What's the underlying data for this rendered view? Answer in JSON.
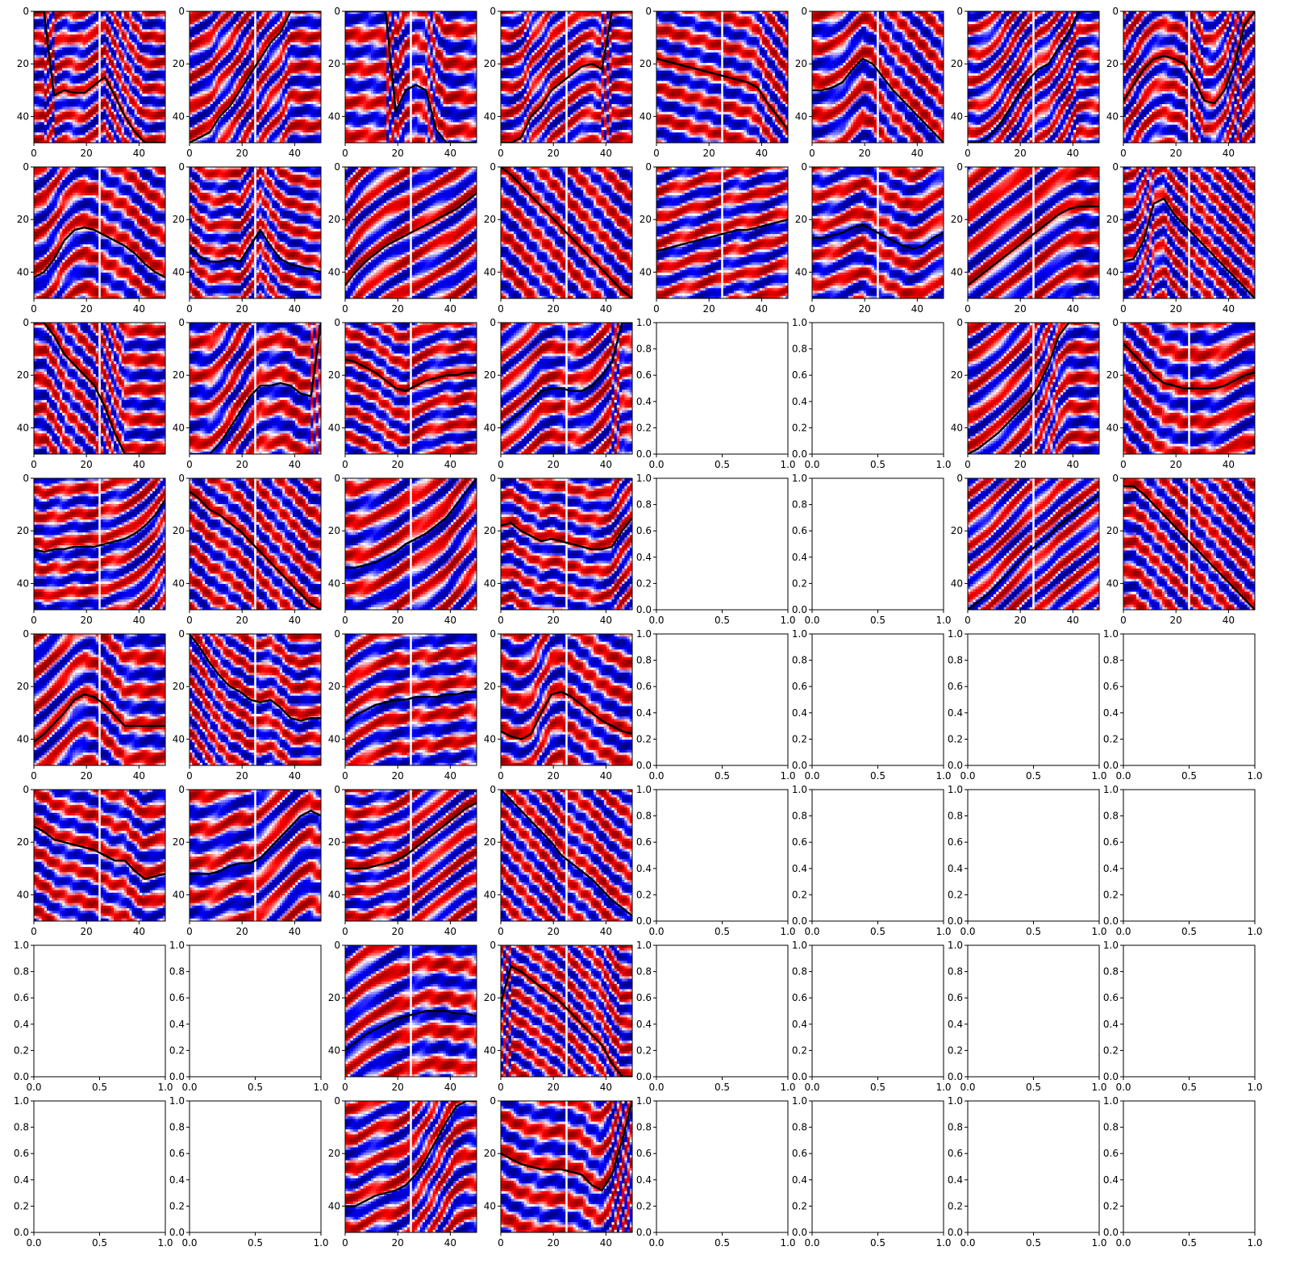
{
  "figure": {
    "rows": 8,
    "cols": 8,
    "colormap": "seismic",
    "colors": {
      "red": "#d40000",
      "white": "#ffffff",
      "blue": "#0000b0",
      "trace": "#000000",
      "center_line": "#ffffff"
    }
  },
  "chart_data": {
    "type": "heatmap",
    "description_free": true,
    "data_axis": {
      "xlim": [
        0,
        50
      ],
      "ylim": [
        50,
        0
      ],
      "xticks": [
        0,
        20,
        40
      ],
      "yticks": [
        0,
        20,
        40
      ],
      "xtick_labels": [
        "0",
        "20",
        "40"
      ],
      "ytick_labels": [
        "0",
        "20",
        "40"
      ],
      "center_x": 25
    },
    "empty_axis": {
      "xlim": [
        0,
        1
      ],
      "ylim": [
        0,
        1
      ],
      "xticks": [
        0,
        0.5,
        1
      ],
      "yticks": [
        0,
        0.2,
        0.4,
        0.6,
        0.8,
        1
      ],
      "xtick_labels": [
        "0.0",
        "0.5",
        "1.0"
      ],
      "ytick_labels": [
        "0.0",
        "0.2",
        "0.4",
        "0.6",
        "0.8",
        "1.0"
      ]
    },
    "panels": [
      {
        "row": 0,
        "col": 0,
        "kind": "data",
        "trace_y": [
          0,
          0,
          32,
          30,
          31,
          31,
          28,
          25,
          32,
          40,
          46,
          50,
          50,
          50
        ],
        "dip": -0.9,
        "phase": 0.3
      },
      {
        "row": 0,
        "col": 1,
        "kind": "data",
        "trace_y": [
          50,
          48,
          46,
          40,
          36,
          30,
          24,
          18,
          12,
          8,
          0,
          0,
          0,
          0
        ],
        "dip": -0.7,
        "phase": 1.1
      },
      {
        "row": 0,
        "col": 2,
        "kind": "data",
        "trace_y": [
          0,
          0,
          0,
          0,
          0,
          38,
          30,
          28,
          30,
          45,
          50,
          50,
          50,
          50
        ],
        "dip": 0.5,
        "phase": 2.0
      },
      {
        "row": 0,
        "col": 3,
        "kind": "data",
        "trace_y": [
          50,
          50,
          48,
          40,
          36,
          30,
          27,
          24,
          21,
          20,
          22,
          0,
          0,
          0
        ],
        "dip": -0.2,
        "phase": 0.7
      },
      {
        "row": 0,
        "col": 4,
        "kind": "data",
        "trace_y": [
          18,
          19,
          20,
          21,
          22,
          23,
          24,
          25,
          26,
          27,
          29,
          35,
          40,
          45
        ],
        "dip": 0.15,
        "phase": 0.0
      },
      {
        "row": 0,
        "col": 5,
        "kind": "data",
        "trace_y": [
          30,
          30,
          29,
          27,
          22,
          18,
          20,
          25,
          30,
          34,
          38,
          42,
          46,
          50
        ],
        "dip": 0.9,
        "phase": 1.6
      },
      {
        "row": 0,
        "col": 6,
        "kind": "data",
        "trace_y": [
          50,
          50,
          48,
          44,
          38,
          32,
          26,
          22,
          20,
          14,
          8,
          0,
          0,
          0
        ],
        "dip": -0.8,
        "phase": 2.4
      },
      {
        "row": 0,
        "col": 7,
        "kind": "data",
        "trace_y": [
          34,
          28,
          22,
          18,
          17,
          18,
          20,
          26,
          34,
          35,
          30,
          20,
          5,
          0
        ],
        "dip": 0.1,
        "phase": 0.5
      },
      {
        "row": 1,
        "col": 0,
        "kind": "data",
        "trace_y": [
          42,
          40,
          35,
          28,
          24,
          23,
          24,
          26,
          28,
          30,
          33,
          37,
          40,
          42
        ],
        "dip": 0.0,
        "phase": 1.3
      },
      {
        "row": 1,
        "col": 1,
        "kind": "data",
        "trace_y": [
          30,
          34,
          36,
          36,
          35,
          36,
          30,
          24,
          30,
          35,
          37,
          38,
          39,
          40
        ],
        "dip": 0.3,
        "phase": 2.2
      },
      {
        "row": 1,
        "col": 2,
        "kind": "data",
        "trace_y": [
          45,
          40,
          36,
          33,
          30,
          28,
          26,
          24,
          22,
          20,
          18,
          16,
          13,
          10
        ],
        "dip": -0.5,
        "phase": 0.9
      },
      {
        "row": 1,
        "col": 3,
        "kind": "data",
        "trace_y": [
          0,
          3,
          7,
          11,
          15,
          19,
          23,
          27,
          31,
          35,
          39,
          43,
          47,
          50
        ],
        "dip": 1.0,
        "phase": 0.2
      },
      {
        "row": 1,
        "col": 4,
        "kind": "data",
        "trace_y": [
          32,
          31,
          30,
          29,
          28,
          27,
          26,
          25,
          24,
          24,
          23,
          22,
          21,
          20
        ],
        "dip": -0.2,
        "phase": 1.8
      },
      {
        "row": 1,
        "col": 5,
        "kind": "data",
        "trace_y": [
          27,
          27,
          26,
          25,
          23,
          22,
          24,
          26,
          28,
          30,
          31,
          30,
          27,
          25
        ],
        "dip": 0.0,
        "phase": 2.7
      },
      {
        "row": 1,
        "col": 6,
        "kind": "data",
        "trace_y": [
          45,
          42,
          39,
          36,
          33,
          30,
          27,
          24,
          21,
          18,
          16,
          15,
          15,
          15
        ],
        "dip": -0.6,
        "phase": 0.4
      },
      {
        "row": 1,
        "col": 7,
        "kind": "data",
        "trace_y": [
          36,
          35,
          28,
          14,
          12,
          18,
          22,
          26,
          30,
          34,
          38,
          42,
          46,
          50
        ],
        "dip": 0.9,
        "phase": 1.5
      },
      {
        "row": 2,
        "col": 0,
        "kind": "data",
        "trace_y": [
          0,
          0,
          5,
          12,
          16,
          20,
          24,
          32,
          42,
          50,
          50,
          50,
          50,
          50
        ],
        "dip": 1.0,
        "phase": 0.8
      },
      {
        "row": 2,
        "col": 1,
        "kind": "data",
        "trace_y": [
          50,
          50,
          50,
          46,
          40,
          34,
          28,
          24,
          24,
          23,
          24,
          27,
          28,
          0
        ],
        "dip": -0.8,
        "phase": 1.9
      },
      {
        "row": 2,
        "col": 2,
        "kind": "data",
        "trace_y": [
          14,
          15,
          17,
          19,
          22,
          25,
          26,
          24,
          22,
          21,
          20,
          20,
          19,
          19
        ],
        "dip": 0.1,
        "phase": 0.3
      },
      {
        "row": 2,
        "col": 3,
        "kind": "data",
        "trace_y": [
          40,
          37,
          34,
          30,
          26,
          25,
          25,
          26,
          26,
          24,
          20,
          15,
          0,
          0
        ],
        "dip": -0.3,
        "phase": 2.5
      },
      {
        "row": 2,
        "col": 4,
        "kind": "empty"
      },
      {
        "row": 2,
        "col": 5,
        "kind": "empty"
      },
      {
        "row": 2,
        "col": 6,
        "kind": "data",
        "trace_y": [
          50,
          48,
          45,
          42,
          38,
          34,
          30,
          24,
          16,
          5,
          0,
          0,
          0,
          0
        ],
        "dip": -0.9,
        "phase": 1.2
      },
      {
        "row": 2,
        "col": 7,
        "kind": "data",
        "trace_y": [
          8,
          12,
          16,
          20,
          23,
          24,
          25,
          25,
          25,
          25,
          24,
          22,
          20,
          19
        ],
        "dip": 0.0,
        "phase": 0.0
      },
      {
        "row": 3,
        "col": 0,
        "kind": "data",
        "trace_y": [
          27,
          28,
          27,
          27,
          26,
          26,
          26,
          25,
          24,
          23,
          21,
          18,
          14,
          8
        ],
        "dip": -0.3,
        "phase": 1.7
      },
      {
        "row": 3,
        "col": 1,
        "kind": "data",
        "trace_y": [
          5,
          8,
          12,
          14,
          17,
          20,
          24,
          28,
          32,
          36,
          40,
          44,
          48,
          50
        ],
        "dip": 0.8,
        "phase": 0.6
      },
      {
        "row": 3,
        "col": 2,
        "kind": "data",
        "trace_y": [
          34,
          34,
          33,
          32,
          30,
          28,
          25,
          23,
          21,
          18,
          15,
          10,
          5,
          0
        ],
        "dip": -0.5,
        "phase": 2.1
      },
      {
        "row": 3,
        "col": 3,
        "kind": "data",
        "trace_y": [
          18,
          17,
          20,
          22,
          24,
          23,
          24,
          25,
          26,
          27,
          27,
          26,
          20,
          15
        ],
        "dip": 0.0,
        "phase": 0.9
      },
      {
        "row": 3,
        "col": 4,
        "kind": "empty"
      },
      {
        "row": 3,
        "col": 5,
        "kind": "empty"
      },
      {
        "row": 3,
        "col": 6,
        "kind": "data",
        "trace_y": [
          50,
          47,
          44,
          40,
          36,
          32,
          28,
          25,
          22,
          18,
          15,
          12,
          9,
          6
        ],
        "dip": -0.7,
        "phase": 2.8
      },
      {
        "row": 3,
        "col": 7,
        "kind": "data",
        "trace_y": [
          3,
          3,
          6,
          10,
          14,
          18,
          22,
          26,
          30,
          34,
          38,
          42,
          46,
          50
        ],
        "dip": 0.8,
        "phase": 1.0
      },
      {
        "row": 4,
        "col": 0,
        "kind": "data",
        "trace_y": [
          41,
          38,
          34,
          30,
          25,
          23,
          24,
          27,
          31,
          35,
          35,
          35,
          35,
          35
        ],
        "dip": -0.1,
        "phase": 0.2
      },
      {
        "row": 4,
        "col": 1,
        "kind": "data",
        "trace_y": [
          0,
          5,
          11,
          16,
          20,
          22,
          25,
          26,
          25,
          28,
          32,
          33,
          32,
          32
        ],
        "dip": 0.7,
        "phase": 1.4
      },
      {
        "row": 4,
        "col": 2,
        "kind": "data",
        "trace_y": [
          34,
          31,
          29,
          27,
          26,
          25,
          25,
          24,
          24,
          24,
          23,
          23,
          22,
          22
        ],
        "dip": -0.1,
        "phase": 2.3
      },
      {
        "row": 4,
        "col": 3,
        "kind": "data",
        "trace_y": [
          37,
          39,
          40,
          38,
          30,
          23,
          22,
          24,
          27,
          30,
          33,
          35,
          37,
          38
        ],
        "dip": 0.4,
        "phase": 0.5
      },
      {
        "row": 4,
        "col": 4,
        "kind": "empty"
      },
      {
        "row": 4,
        "col": 5,
        "kind": "empty"
      },
      {
        "row": 4,
        "col": 6,
        "kind": "empty"
      },
      {
        "row": 4,
        "col": 7,
        "kind": "empty"
      },
      {
        "row": 5,
        "col": 0,
        "kind": "data",
        "trace_y": [
          14,
          16,
          19,
          20,
          21,
          22,
          23,
          25,
          27,
          27,
          31,
          34,
          33,
          32
        ],
        "dip": 0.2,
        "phase": 1.1
      },
      {
        "row": 5,
        "col": 1,
        "kind": "data",
        "trace_y": [
          32,
          32,
          32,
          31,
          29,
          28,
          28,
          26,
          22,
          18,
          14,
          10,
          8,
          10
        ],
        "dip": -0.5,
        "phase": 2.0
      },
      {
        "row": 5,
        "col": 2,
        "kind": "data",
        "trace_y": [
          30,
          30,
          30,
          29,
          28,
          27,
          25,
          22,
          19,
          16,
          13,
          10,
          7,
          5
        ],
        "dip": -0.4,
        "phase": 0.7
      },
      {
        "row": 5,
        "col": 3,
        "kind": "data",
        "trace_y": [
          0,
          4,
          8,
          12,
          16,
          20,
          25,
          28,
          31,
          34,
          38,
          42,
          45,
          48
        ],
        "dip": 0.8,
        "phase": 1.9
      },
      {
        "row": 5,
        "col": 4,
        "kind": "empty"
      },
      {
        "row": 5,
        "col": 5,
        "kind": "empty"
      },
      {
        "row": 5,
        "col": 6,
        "kind": "empty"
      },
      {
        "row": 5,
        "col": 7,
        "kind": "empty"
      },
      {
        "row": 6,
        "col": 0,
        "kind": "empty"
      },
      {
        "row": 6,
        "col": 1,
        "kind": "empty"
      },
      {
        "row": 6,
        "col": 2,
        "kind": "data",
        "trace_y": [
          40,
          37,
          34,
          32,
          30,
          28,
          27,
          26,
          25,
          25,
          25,
          26,
          26,
          27
        ],
        "dip": 0.0,
        "phase": 2.6
      },
      {
        "row": 6,
        "col": 3,
        "kind": "data",
        "trace_y": [
          22,
          8,
          10,
          13,
          16,
          19,
          22,
          26,
          30,
          34,
          38,
          45,
          50,
          50
        ],
        "dip": 0.9,
        "phase": 0.3
      },
      {
        "row": 6,
        "col": 4,
        "kind": "empty"
      },
      {
        "row": 6,
        "col": 5,
        "kind": "empty"
      },
      {
        "row": 6,
        "col": 6,
        "kind": "empty"
      },
      {
        "row": 6,
        "col": 7,
        "kind": "empty"
      },
      {
        "row": 7,
        "col": 0,
        "kind": "empty"
      },
      {
        "row": 7,
        "col": 1,
        "kind": "empty"
      },
      {
        "row": 7,
        "col": 2,
        "kind": "data",
        "trace_y": [
          40,
          40,
          38,
          36,
          35,
          34,
          32,
          28,
          22,
          15,
          8,
          2,
          0,
          0
        ],
        "dip": -0.8,
        "phase": 1.5
      },
      {
        "row": 7,
        "col": 3,
        "kind": "data",
        "trace_y": [
          20,
          22,
          24,
          25,
          26,
          26,
          26,
          27,
          28,
          32,
          34,
          28,
          15,
          0
        ],
        "dip": 0.1,
        "phase": 0.8
      },
      {
        "row": 7,
        "col": 4,
        "kind": "empty"
      },
      {
        "row": 7,
        "col": 5,
        "kind": "empty"
      },
      {
        "row": 7,
        "col": 6,
        "kind": "empty"
      },
      {
        "row": 7,
        "col": 7,
        "kind": "empty"
      }
    ]
  }
}
